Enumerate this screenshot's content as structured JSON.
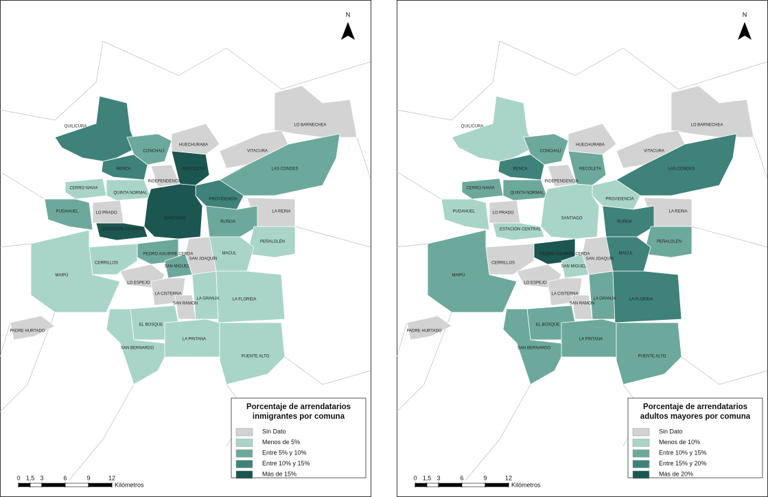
{
  "maps": [
    {
      "north": "N",
      "legend": {
        "title": [
          "Porcentaje de arrendatarios",
          "inmigrantes por comuna"
        ],
        "items": [
          "Sin Dato",
          "Menos de 5%",
          "Entre 5% y 10%",
          "Entre 10% y 15%",
          "Más de 15%"
        ],
        "colors": [
          "#d3d3d3",
          "#a9d5c9",
          "#6ca99c",
          "#3e8279",
          "#1b5650"
        ]
      },
      "scale": {
        "ticks": [
          0,
          {
            "value": 1.5,
            "label": "1,5"
          },
          3,
          6,
          9,
          12
        ],
        "unit": "Kilómetros"
      },
      "comunas": [
        {
          "name": "QUILICURA",
          "class": 3
        },
        {
          "name": "LO BARNECHEA",
          "class": 0
        },
        {
          "name": "CONCHALÍ",
          "class": 2
        },
        {
          "name": "HUECHURABA",
          "class": 0
        },
        {
          "name": "VITACURA",
          "class": 0
        },
        {
          "name": "RENCA",
          "class": 3
        },
        {
          "name": "RECOLETA",
          "class": 4
        },
        {
          "name": "LAS CONDES",
          "class": 2
        },
        {
          "name": "INDEPENDENCIA",
          "class": 0
        },
        {
          "name": "CERRO NAVIA",
          "class": 1
        },
        {
          "name": "QUINTA NORMAL",
          "class": 1
        },
        {
          "name": "PROVIDENCIA",
          "class": 3
        },
        {
          "name": "PUDAHUEL",
          "class": 2
        },
        {
          "name": "LO PRADO",
          "class": 0
        },
        {
          "name": "SANTIAGO",
          "class": 4
        },
        {
          "name": "LA REINA",
          "class": 0
        },
        {
          "name": "ÑUÑOA",
          "class": 2
        },
        {
          "name": "ESTACIÓN CENTRAL",
          "class": 4
        },
        {
          "name": "PEÑALOLÉN",
          "class": 1
        },
        {
          "name": "PEDRO AGUIRRE CERDA",
          "class": 2
        },
        {
          "name": "MACUL",
          "class": 1
        },
        {
          "name": "CERRILLOS",
          "class": 1
        },
        {
          "name": "SAN JOAQUÍN",
          "class": 0
        },
        {
          "name": "SAN MIGUEL",
          "class": 2
        },
        {
          "name": "MAIPÚ",
          "class": 1
        },
        {
          "name": "LO ESPEJO",
          "class": 0
        },
        {
          "name": "LA CISTERNA",
          "class": 0
        },
        {
          "name": "LA GRANJA",
          "class": 1
        },
        {
          "name": "LA FLORIDA",
          "class": 1
        },
        {
          "name": "SAN RAMÓN",
          "class": 0
        },
        {
          "name": "PADRE HURTADO",
          "class": 0
        },
        {
          "name": "EL BOSQUE",
          "class": 1
        },
        {
          "name": "LA PINTANA",
          "class": 1
        },
        {
          "name": "SAN BERNARDO",
          "class": 1
        },
        {
          "name": "PUENTE ALTO",
          "class": 1
        }
      ]
    },
    {
      "north": "N",
      "legend": {
        "title": [
          "Porcentaje de arrendatarios",
          "adultos mayores por comuna"
        ],
        "items": [
          "Sin Dato",
          "Menos de 10%",
          "Entre 10% y 15%",
          "Entre 15% y 20%",
          "Más de 20%"
        ],
        "colors": [
          "#d3d3d3",
          "#a9d5c9",
          "#6ca99c",
          "#3e8279",
          "#1b5650"
        ]
      },
      "scale": {
        "ticks": [
          0,
          {
            "value": 1.5,
            "label": "1,5"
          },
          3,
          6,
          9,
          12
        ],
        "unit": "Kilómetros"
      },
      "comunas": [
        {
          "name": "QUILICURA",
          "class": 1
        },
        {
          "name": "LO BARNECHEA",
          "class": 0
        },
        {
          "name": "CONCHALÍ",
          "class": 2
        },
        {
          "name": "HUECHURABA",
          "class": 0
        },
        {
          "name": "VITACURA",
          "class": 0
        },
        {
          "name": "RENCA",
          "class": 3
        },
        {
          "name": "RECOLETA",
          "class": 2
        },
        {
          "name": "LAS CONDES",
          "class": 3
        },
        {
          "name": "INDEPENDENCIA",
          "class": 0
        },
        {
          "name": "CERRO NAVIA",
          "class": 2
        },
        {
          "name": "QUINTA NORMAL",
          "class": 2
        },
        {
          "name": "PROVIDENCIA",
          "class": 1
        },
        {
          "name": "PUDAHUEL",
          "class": 1
        },
        {
          "name": "LO PRADO",
          "class": 0
        },
        {
          "name": "SANTIAGO",
          "class": 1
        },
        {
          "name": "LA REINA",
          "class": 0
        },
        {
          "name": "ÑUÑOA",
          "class": 3
        },
        {
          "name": "ESTACIÓN CENTRAL",
          "class": 1
        },
        {
          "name": "PEÑALOLÉN",
          "class": 2
        },
        {
          "name": "PEDRO AGUIRRE CERDA",
          "class": 4
        },
        {
          "name": "MACUL",
          "class": 3
        },
        {
          "name": "CERRILLOS",
          "class": 0
        },
        {
          "name": "SAN JOAQUÍN",
          "class": 0
        },
        {
          "name": "SAN MIGUEL",
          "class": 1
        },
        {
          "name": "MAIPÚ",
          "class": 2
        },
        {
          "name": "LO ESPEJO",
          "class": 0
        },
        {
          "name": "LA CISTERNA",
          "class": 0
        },
        {
          "name": "LA GRANJA",
          "class": 2
        },
        {
          "name": "LA FLORIDA",
          "class": 3
        },
        {
          "name": "SAN RAMÓN",
          "class": 0
        },
        {
          "name": "PADRE HURTADO",
          "class": 0
        },
        {
          "name": "EL BOSQUE",
          "class": 2
        },
        {
          "name": "LA PINTANA",
          "class": 2
        },
        {
          "name": "SAN BERNARDO",
          "class": 2
        },
        {
          "name": "PUENTE ALTO",
          "class": 2
        }
      ]
    }
  ]
}
